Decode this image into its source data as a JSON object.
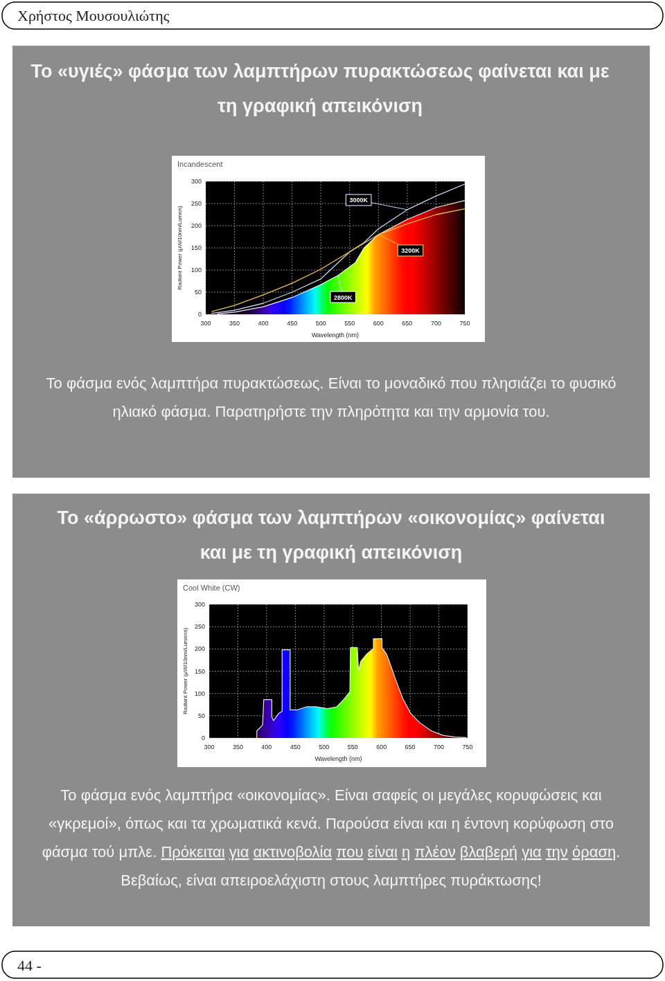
{
  "chart_data": [
    {
      "type": "line",
      "title": "Το «υγιές» φάσμα των λαμπτήρων πυρακτώσεως φαίνεται και με τη γραφική απεικόνιση",
      "subtitle": "Incandescent",
      "xlabel": "Wavelength (nm)",
      "ylabel": "Radiant Power (µW/10nm/Lumen)",
      "xlim": [
        300,
        750
      ],
      "xticks": [
        300,
        350,
        400,
        450,
        500,
        550,
        600,
        650,
        700,
        750
      ],
      "ylim": [
        0,
        300
      ],
      "yticks": [
        0,
        50,
        100,
        150,
        200,
        250,
        300
      ],
      "grid": true,
      "legend": false,
      "annotations": [
        "Χρήστος Μουσουλιώτης",
        "Το φάσμα ενός λαμπτήρα πυρακτώσεως. Είναι το μοναδικό που πλησιάζει το φυσικό ηλιακό φάσμα. Παρατηρήστε την πληρότητα και την αρμονία του."
      ],
      "series": [
        {
          "name": "3000K",
          "color": "#c8d4f4",
          "x": [
            310,
            350,
            400,
            450,
            500,
            550,
            575,
            600,
            650,
            700,
            750
          ],
          "values": [
            2,
            9,
            25,
            50,
            80,
            141,
            162,
            193,
            236,
            267,
            294
          ]
        },
        {
          "name": "3200K",
          "color": "#f0c050",
          "x": [
            310,
            350,
            400,
            450,
            500,
            550,
            600,
            650,
            700,
            750
          ],
          "values": [
            6,
            20,
            44,
            70,
            102,
            141,
            180,
            204,
            225,
            238
          ]
        },
        {
          "name": "2800K",
          "color": "#e8f4f4",
          "type": "area",
          "x": [
            320,
            350,
            400,
            450,
            500,
            530,
            560,
            575,
            600,
            650,
            700,
            750
          ],
          "values": [
            1,
            5,
            17,
            38,
            67,
            88,
            117,
            150,
            180,
            214,
            241,
            257
          ]
        }
      ]
    },
    {
      "type": "area",
      "title": "Το «άρρωστο» φάσμα των λαμπτήρων «οικονομίας» φαίνεται και με τη γραφική απεικόνιση",
      "subtitle": "Cool White (CW)",
      "xlabel": "Wavelength (nm)",
      "ylabel": "Radiant Power (µW/10nm/Lumens)",
      "xlim": [
        300,
        750
      ],
      "xticks": [
        300,
        350,
        400,
        450,
        500,
        550,
        600,
        650,
        700,
        750
      ],
      "ylim": [
        0,
        300
      ],
      "yticks": [
        0,
        50,
        100,
        150,
        200,
        250,
        300
      ],
      "grid": true,
      "legend": false,
      "annotations": [
        "Το φάσμα ενός λαμπτήρα «οικονομίας». Είναι σαφείς οι μεγάλες κορυφώσεις και «γκρεμοί», όπως και τα χρωματικά κενά. Παρούσα είναι και η έντονη κορύφωση στο φάσμα τού μπλε.",
        "Πρόκειται για ακτινοβολία που είναι η πλέον βλαβερή για την όραση",
        ". Βεβαίως, είναι απειροελάχιστη στους λαμπτήρες πυράκτωσης!",
        "44 -"
      ],
      "series": [
        {
          "color": "#e8e8e8",
          "x": [
            383,
            383,
            393,
            395,
            409,
            409,
            412,
            421,
            427,
            427,
            441,
            441,
            453,
            469,
            486,
            506,
            522,
            534,
            545,
            546,
            558,
            560,
            564,
            574,
            586,
            586,
            601,
            601,
            609,
            615,
            625,
            637,
            651,
            667,
            687,
            707,
            728,
            748
          ],
          "values": [
            0,
            16,
            29,
            86,
            86,
            47,
            39,
            55,
            60,
            198,
            198,
            63,
            63,
            70,
            70,
            66,
            70,
            86,
            104,
            203,
            203,
            151,
            172,
            188,
            201,
            223,
            223,
            203,
            188,
            167,
            130,
            89,
            55,
            34,
            16,
            6,
            2,
            1
          ]
        }
      ]
    }
  ]
}
